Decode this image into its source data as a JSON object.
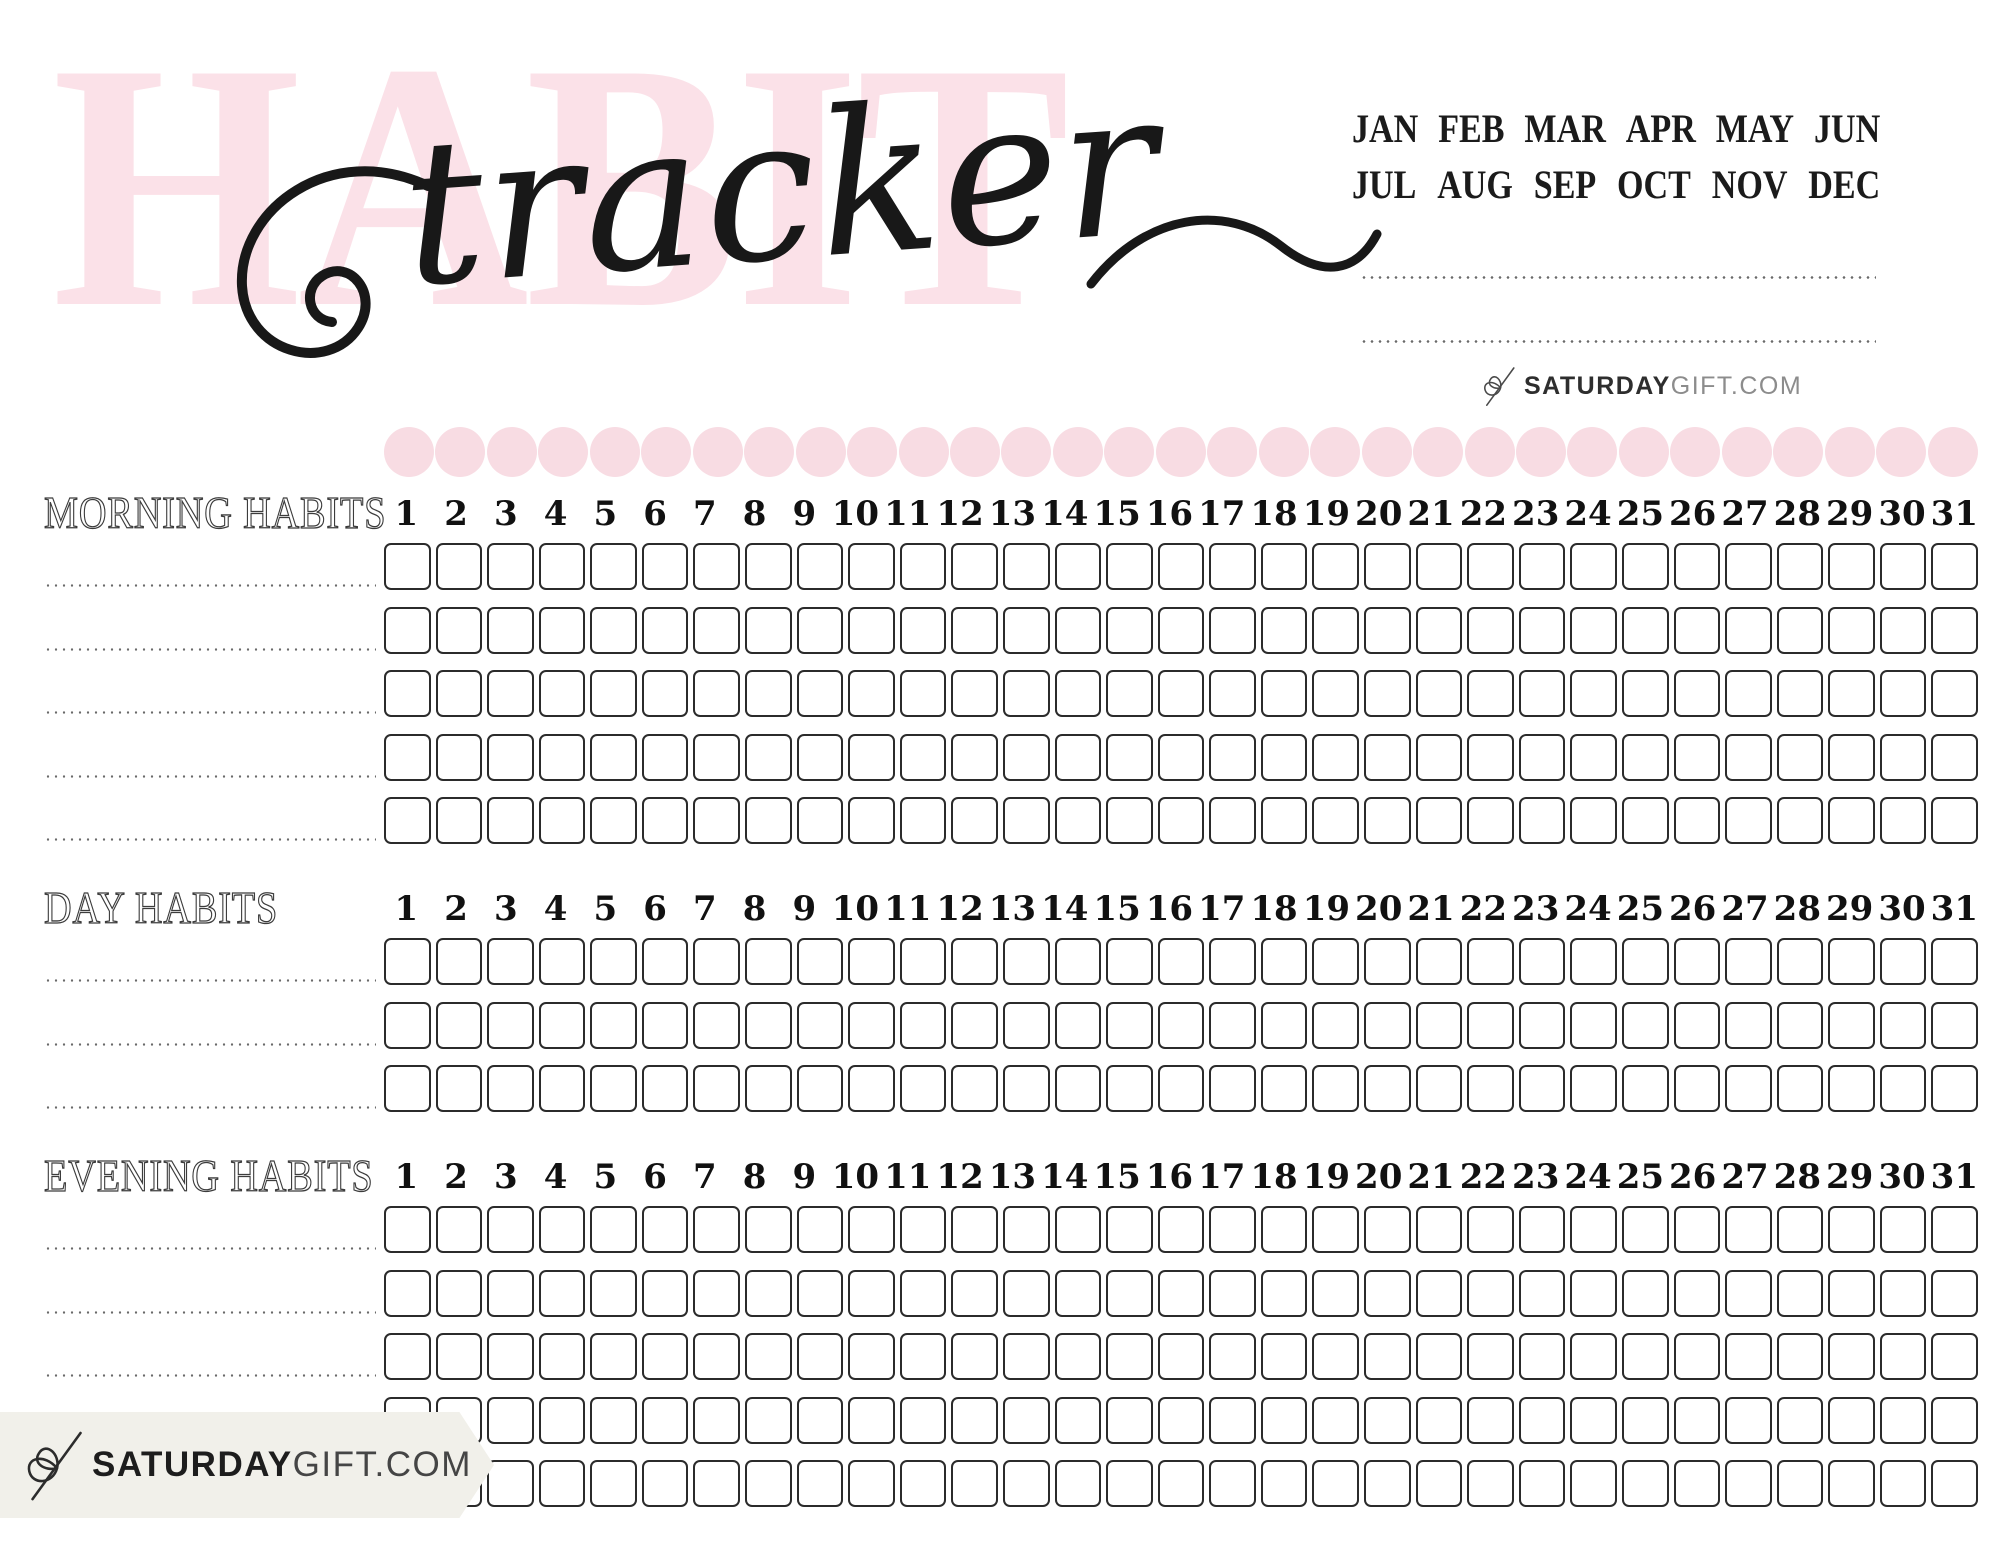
{
  "title": {
    "background_word": "HABIT",
    "script_word": "tracker"
  },
  "months": {
    "row1": [
      "JAN",
      "FEB",
      "MAR",
      "APR",
      "MAY",
      "JUN"
    ],
    "row2": [
      "JUL",
      "AUG",
      "SEP",
      "OCT",
      "NOV",
      "DEC"
    ]
  },
  "header_write_in_lines": 2,
  "brand": {
    "name_bold": "SATURDAY",
    "name_light": "GIFT.COM",
    "icon": "bow-icon"
  },
  "days": [
    1,
    2,
    3,
    4,
    5,
    6,
    7,
    8,
    9,
    10,
    11,
    12,
    13,
    14,
    15,
    16,
    17,
    18,
    19,
    20,
    21,
    22,
    23,
    24,
    25,
    26,
    27,
    28,
    29,
    30,
    31
  ],
  "sections": [
    {
      "id": "morning",
      "label": "MORNING HABITS",
      "rows": 5
    },
    {
      "id": "day",
      "label": "DAY HABITS",
      "rows": 3
    },
    {
      "id": "evening",
      "label": "EVENING HABITS",
      "rows": 5
    }
  ],
  "checkbox_state": "all-unchecked",
  "habit_name_values": "",
  "colors": {
    "pink_title": "#fbe1e8",
    "pink_circle": "#f8dce3",
    "ink": "#1b1b1b",
    "box_border": "#2b2b2b",
    "dotted_line": "#6a6a6a",
    "ribbon_background": "#f1f0ea",
    "brand_light_gray": "#8c8c8c"
  }
}
